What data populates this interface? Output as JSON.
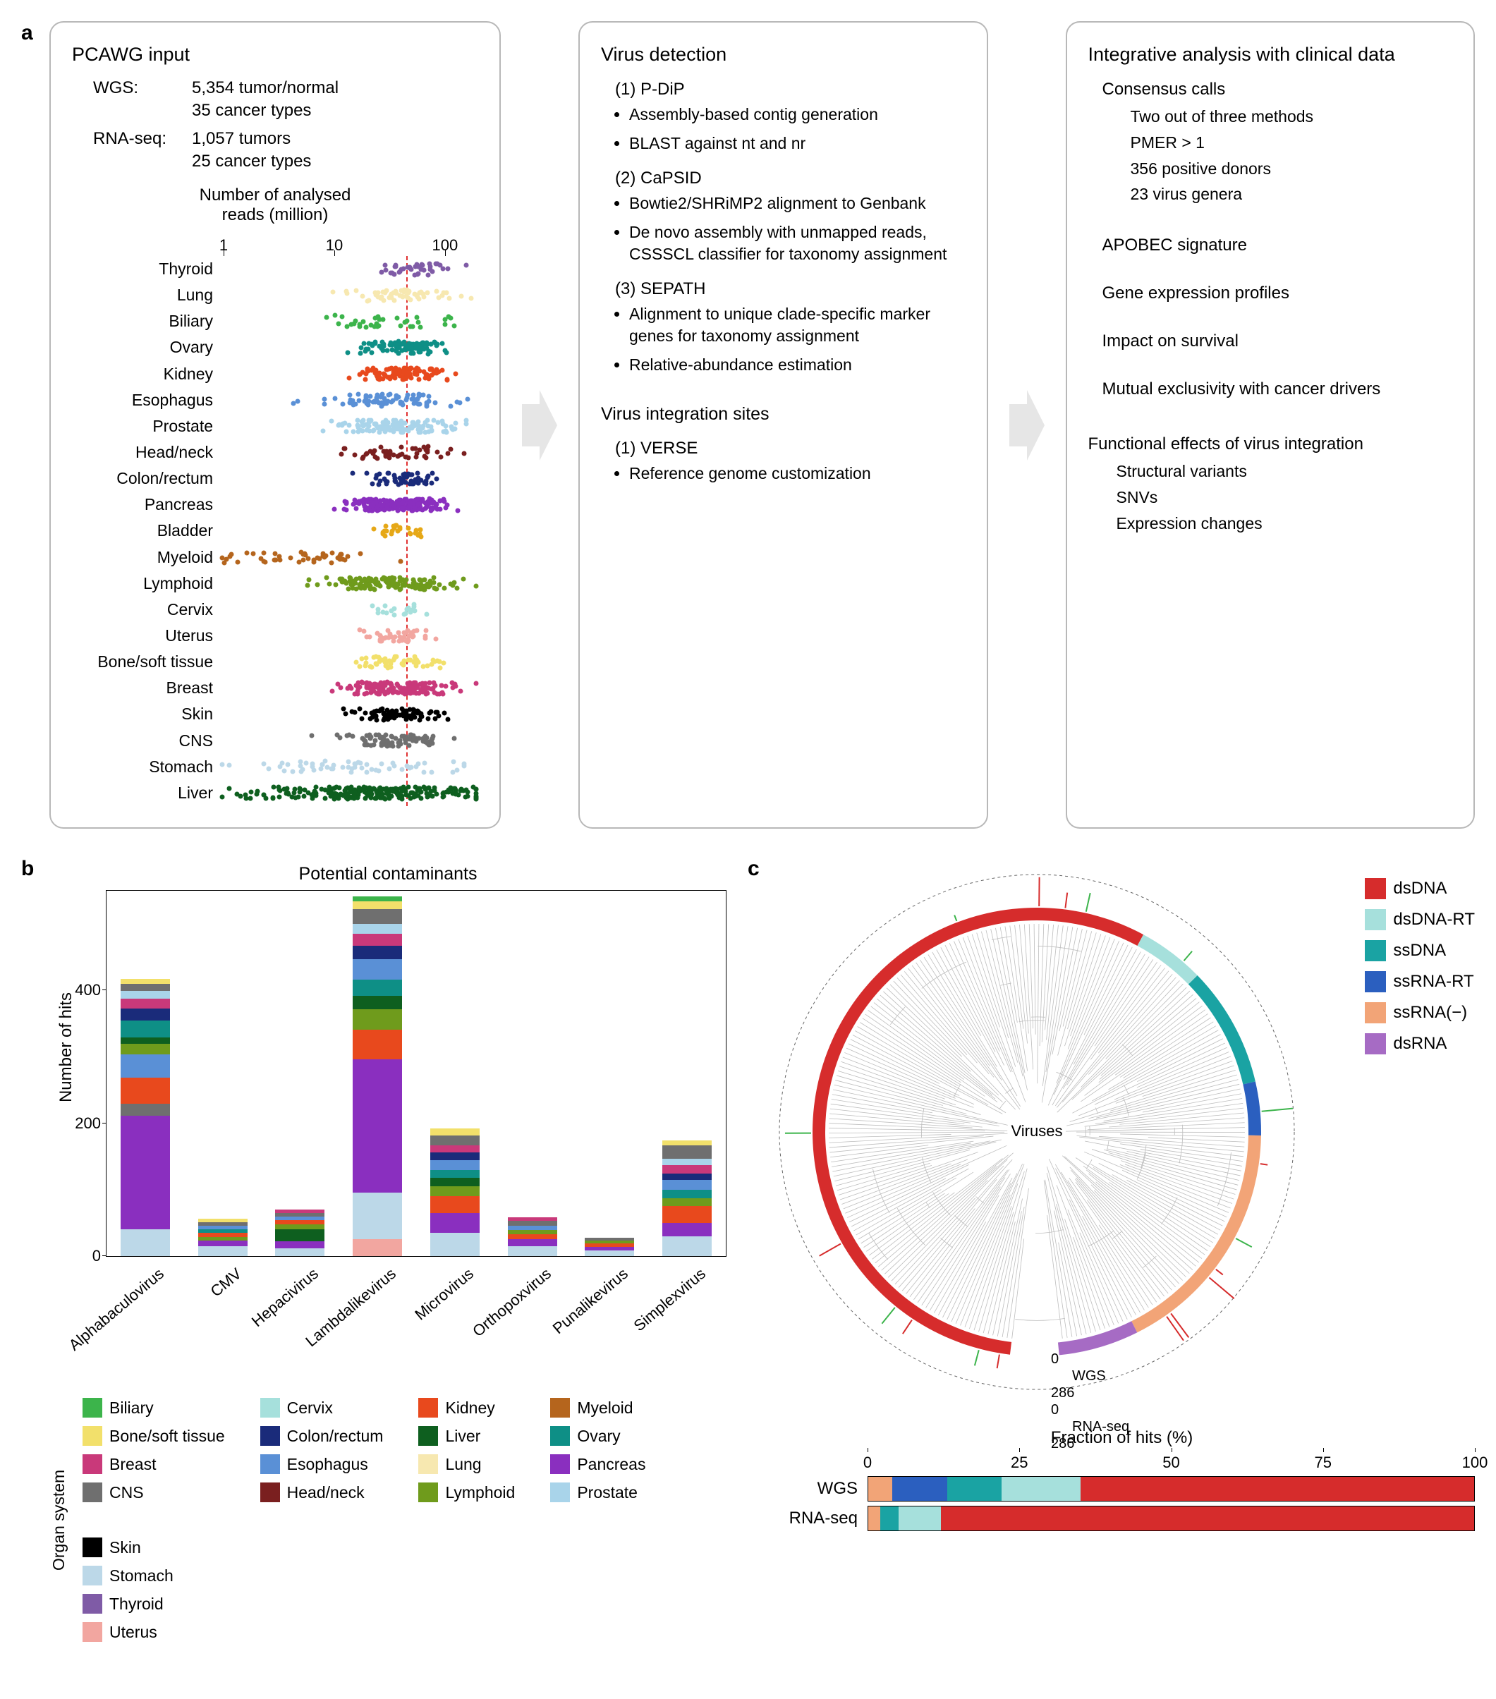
{
  "labels": {
    "a": "a",
    "b": "b",
    "c": "c"
  },
  "panel_a": {
    "box1": {
      "title": "PCAWG input",
      "rows": [
        {
          "k": "WGS:",
          "v": "5,354 tumor/normal"
        },
        {
          "k": "",
          "v": "35 cancer types"
        },
        {
          "k": "RNA-seq:",
          "v": "1,057 tumors"
        },
        {
          "k": "",
          "v": "25 cancer types"
        }
      ],
      "scatter": {
        "title": "Number of analysed",
        "subtitle": "reads (million)",
        "ticks": [
          1,
          10,
          100
        ],
        "xmin_log": 0,
        "xmax_log": 2.3,
        "median_log": 1.65,
        "organs": [
          {
            "name": "Thyroid",
            "color": "#7f5ba6",
            "n": 40,
            "mu": 1.72,
            "sd": 0.18
          },
          {
            "name": "Lung",
            "color": "#f7e8b0",
            "n": 55,
            "mu": 1.6,
            "sd": 0.28
          },
          {
            "name": "Biliary",
            "color": "#3cb44b",
            "n": 35,
            "mu": 1.45,
            "sd": 0.35
          },
          {
            "name": "Ovary",
            "color": "#0e8f86",
            "n": 90,
            "mu": 1.62,
            "sd": 0.2
          },
          {
            "name": "Kidney",
            "color": "#e8491d",
            "n": 100,
            "mu": 1.63,
            "sd": 0.2
          },
          {
            "name": "Esophagus",
            "color": "#5a90d6",
            "n": 80,
            "mu": 1.48,
            "sd": 0.3
          },
          {
            "name": "Prostate",
            "color": "#a9d4ea",
            "n": 120,
            "mu": 1.55,
            "sd": 0.25
          },
          {
            "name": "Head/neck",
            "color": "#7a1f1f",
            "n": 50,
            "mu": 1.58,
            "sd": 0.28
          },
          {
            "name": "Colon/rectum",
            "color": "#1a2b7a",
            "n": 55,
            "mu": 1.6,
            "sd": 0.15
          },
          {
            "name": "Pancreas",
            "color": "#8a2fbf",
            "n": 200,
            "mu": 1.58,
            "sd": 0.22
          },
          {
            "name": "Bladder",
            "color": "#e6a817",
            "n": 25,
            "mu": 1.6,
            "sd": 0.12
          },
          {
            "name": "Myeloid",
            "color": "#b5651d",
            "n": 45,
            "mu": 0.65,
            "sd": 0.35
          },
          {
            "name": "Lymphoid",
            "color": "#6f9b1c",
            "n": 140,
            "mu": 1.5,
            "sd": 0.3
          },
          {
            "name": "Cervix",
            "color": "#a6e0dc",
            "n": 20,
            "mu": 1.62,
            "sd": 0.1
          },
          {
            "name": "Uterus",
            "color": "#f2a6a0",
            "n": 45,
            "mu": 1.58,
            "sd": 0.14
          },
          {
            "name": "Bone/soft tissue",
            "color": "#f2e06b",
            "n": 50,
            "mu": 1.55,
            "sd": 0.25
          },
          {
            "name": "Breast",
            "color": "#c9397a",
            "n": 150,
            "mu": 1.55,
            "sd": 0.25
          },
          {
            "name": "Skin",
            "color": "#000000",
            "n": 90,
            "mu": 1.58,
            "sd": 0.22
          },
          {
            "name": "CNS",
            "color": "#6f6f6f",
            "n": 80,
            "mu": 1.55,
            "sd": 0.25
          },
          {
            "name": "Stomach",
            "color": "#bcd8e8",
            "n": 60,
            "mu": 1.1,
            "sd": 0.45
          },
          {
            "name": "Liver",
            "color": "#0e5f1f",
            "n": 250,
            "mu": 1.3,
            "sd": 0.5
          }
        ]
      }
    },
    "box2": {
      "title": "Virus detection",
      "methods": [
        {
          "head": "(1) P-DiP",
          "items": [
            "Assembly-based contig generation",
            "BLAST against nt and nr"
          ]
        },
        {
          "head": "(2) CaPSID",
          "items": [
            "Bowtie2/SHRiMP2 alignment to Genbank",
            "De novo assembly with unmapped reads, CSSSCL classifier for taxonomy assignment"
          ]
        },
        {
          "head": "(3) SEPATH",
          "items": [
            "Alignment to unique clade-specific marker genes for taxonomy assignment",
            "Relative-abundance estimation"
          ]
        }
      ],
      "integration_head": "Virus integration sites",
      "integration": [
        {
          "head": "(1) VERSE",
          "items": [
            "Reference genome customization"
          ]
        }
      ]
    },
    "box3": {
      "title": "Integrative analysis with clinical data",
      "consensus_head": "Consensus calls",
      "consensus_items": [
        "Two out of three methods",
        "PMER > 1",
        "356 positive donors",
        "23  virus genera"
      ],
      "analyses": [
        "APOBEC signature",
        "Gene expression profiles",
        "Impact on survival",
        "Mutual exclusivity with cancer drivers"
      ],
      "func_head": "Functional effects of virus integration",
      "func_items": [
        "Structural variants",
        "SNVs",
        "Expression changes"
      ]
    }
  },
  "organ_colors": {
    "Biliary": "#3cb44b",
    "Bone/soft tissue": "#f2e06b",
    "Breast": "#c9397a",
    "CNS": "#6f6f6f",
    "Cervix": "#a6e0dc",
    "Colon/rectum": "#1a2b7a",
    "Esophagus": "#5a90d6",
    "Head/neck": "#7a1f1f",
    "Kidney": "#e8491d",
    "Liver": "#0e5f1f",
    "Lung": "#f7e8b0",
    "Lymphoid": "#6f9b1c",
    "Myeloid": "#b5651d",
    "Ovary": "#0e8f86",
    "Pancreas": "#8a2fbf",
    "Prostate": "#a9d4ea",
    "Skin": "#000000",
    "Stomach": "#bcd8e8",
    "Thyroid": "#7f5ba6",
    "Uterus": "#f2a6a0"
  },
  "panel_b": {
    "title": "Potential contaminants",
    "ylabel": "Number of hits",
    "ymax": 550,
    "yticks": [
      0,
      200,
      400
    ],
    "categories": [
      {
        "name": "Alphabaculovirus",
        "segments": [
          {
            "c": "#bcd8e8",
            "v": 40
          },
          {
            "c": "#8a2fbf",
            "v": 170
          },
          {
            "c": "#6f6f6f",
            "v": 18
          },
          {
            "c": "#e8491d",
            "v": 40
          },
          {
            "c": "#5a90d6",
            "v": 35
          },
          {
            "c": "#6f9b1c",
            "v": 15
          },
          {
            "c": "#0e5f1f",
            "v": 10
          },
          {
            "c": "#0e8f86",
            "v": 25
          },
          {
            "c": "#1a2b7a",
            "v": 18
          },
          {
            "c": "#c9397a",
            "v": 15
          },
          {
            "c": "#a9d4ea",
            "v": 12
          },
          {
            "c": "#6f6f6f",
            "v": 10
          },
          {
            "c": "#f2e06b",
            "v": 8
          }
        ]
      },
      {
        "name": "CMV",
        "segments": [
          {
            "c": "#bcd8e8",
            "v": 15
          },
          {
            "c": "#8a2fbf",
            "v": 8
          },
          {
            "c": "#6f9b1c",
            "v": 6
          },
          {
            "c": "#e8491d",
            "v": 6
          },
          {
            "c": "#0e8f86",
            "v": 5
          },
          {
            "c": "#5a90d6",
            "v": 5
          },
          {
            "c": "#6f6f6f",
            "v": 6
          },
          {
            "c": "#f2e06b",
            "v": 5
          }
        ]
      },
      {
        "name": "Hepacivirus",
        "segments": [
          {
            "c": "#bcd8e8",
            "v": 12
          },
          {
            "c": "#8a2fbf",
            "v": 10
          },
          {
            "c": "#0e5f1f",
            "v": 18
          },
          {
            "c": "#6f9b1c",
            "v": 8
          },
          {
            "c": "#e8491d",
            "v": 6
          },
          {
            "c": "#5a90d6",
            "v": 5
          },
          {
            "c": "#6f6f6f",
            "v": 6
          },
          {
            "c": "#c9397a",
            "v": 5
          }
        ]
      },
      {
        "name": "Lambdalikevirus",
        "segments": [
          {
            "c": "#f2a6a0",
            "v": 25
          },
          {
            "c": "#bcd8e8",
            "v": 70
          },
          {
            "c": "#8a2fbf",
            "v": 200
          },
          {
            "c": "#e8491d",
            "v": 45
          },
          {
            "c": "#6f9b1c",
            "v": 30
          },
          {
            "c": "#0e5f1f",
            "v": 20
          },
          {
            "c": "#0e8f86",
            "v": 25
          },
          {
            "c": "#5a90d6",
            "v": 30
          },
          {
            "c": "#1a2b7a",
            "v": 20
          },
          {
            "c": "#c9397a",
            "v": 18
          },
          {
            "c": "#a9d4ea",
            "v": 15
          },
          {
            "c": "#6f6f6f",
            "v": 22
          },
          {
            "c": "#f2e06b",
            "v": 12
          },
          {
            "c": "#3cb44b",
            "v": 8
          }
        ]
      },
      {
        "name": "Microvirus",
        "segments": [
          {
            "c": "#bcd8e8",
            "v": 35
          },
          {
            "c": "#8a2fbf",
            "v": 30
          },
          {
            "c": "#e8491d",
            "v": 25
          },
          {
            "c": "#6f9b1c",
            "v": 15
          },
          {
            "c": "#0e5f1f",
            "v": 12
          },
          {
            "c": "#0e8f86",
            "v": 12
          },
          {
            "c": "#5a90d6",
            "v": 15
          },
          {
            "c": "#1a2b7a",
            "v": 12
          },
          {
            "c": "#c9397a",
            "v": 10
          },
          {
            "c": "#6f6f6f",
            "v": 15
          },
          {
            "c": "#f2e06b",
            "v": 10
          }
        ]
      },
      {
        "name": "Orthopoxvirus",
        "segments": [
          {
            "c": "#bcd8e8",
            "v": 15
          },
          {
            "c": "#8a2fbf",
            "v": 10
          },
          {
            "c": "#e8491d",
            "v": 8
          },
          {
            "c": "#6f9b1c",
            "v": 6
          },
          {
            "c": "#5a90d6",
            "v": 6
          },
          {
            "c": "#6f6f6f",
            "v": 8
          },
          {
            "c": "#c9397a",
            "v": 5
          }
        ]
      },
      {
        "name": "Punalikevirus",
        "segments": [
          {
            "c": "#bcd8e8",
            "v": 8
          },
          {
            "c": "#8a2fbf",
            "v": 6
          },
          {
            "c": "#e8491d",
            "v": 5
          },
          {
            "c": "#6f9b1c",
            "v": 4
          },
          {
            "c": "#6f6f6f",
            "v": 5
          }
        ]
      },
      {
        "name": "Simplexvirus",
        "segments": [
          {
            "c": "#bcd8e8",
            "v": 30
          },
          {
            "c": "#8a2fbf",
            "v": 20
          },
          {
            "c": "#e8491d",
            "v": 25
          },
          {
            "c": "#6f9b1c",
            "v": 12
          },
          {
            "c": "#0e8f86",
            "v": 12
          },
          {
            "c": "#5a90d6",
            "v": 15
          },
          {
            "c": "#1a2b7a",
            "v": 10
          },
          {
            "c": "#c9397a",
            "v": 12
          },
          {
            "c": "#a9d4ea",
            "v": 10
          },
          {
            "c": "#6f6f6f",
            "v": 20
          },
          {
            "c": "#f2e06b",
            "v": 8
          }
        ]
      }
    ]
  },
  "organ_legend": {
    "label": "Organ system",
    "cols": [
      [
        "Biliary",
        "Bone/soft tissue",
        "Breast",
        "CNS"
      ],
      [
        "Cervix",
        "Colon/rectum",
        "Esophagus",
        "Head/neck"
      ],
      [
        "Kidney",
        "Liver",
        "Lung",
        "Lymphoid"
      ],
      [
        "Myeloid",
        "Ovary",
        "Pancreas",
        "Prostate"
      ],
      [
        "Skin",
        "Stomach",
        "Thyroid",
        "Uterus"
      ]
    ]
  },
  "panel_c": {
    "center": "Viruses",
    "groups": [
      {
        "name": "dsDNA",
        "color": "#d62c2c"
      },
      {
        "name": "dsDNA-RT",
        "color": "#a6e0dc"
      },
      {
        "name": "ssDNA",
        "color": "#1aa3a3"
      },
      {
        "name": "ssRNA-RT",
        "color": "#2b5fbf"
      },
      {
        "name": "ssRNA(−)",
        "color": "#f2a477"
      },
      {
        "name": "dsRNA",
        "color": "#a66bc4"
      }
    ],
    "ring_fractions": [
      {
        "color": "#d62c2c",
        "frac": 0.58
      },
      {
        "color": "#a6e0dc",
        "frac": 0.05
      },
      {
        "color": "#1aa3a3",
        "frac": 0.09
      },
      {
        "color": "#2b5fbf",
        "frac": 0.04
      },
      {
        "color": "#f2a477",
        "frac": 0.18
      },
      {
        "color": "#a66bc4",
        "frac": 0.06
      }
    ],
    "scale_labels": {
      "wgs0": "0",
      "wgs": "WGS",
      "wgs_max": "286",
      "rna0": "0",
      "rna": "RNA-seq",
      "rna_max": "286"
    },
    "bars_title": "Fraction of hits (%)",
    "bar_ticks": [
      0,
      25,
      50,
      75,
      100
    ],
    "bars": [
      {
        "label": "WGS",
        "segments": [
          {
            "c": "#f2a477",
            "v": 4
          },
          {
            "c": "#2b5fbf",
            "v": 9
          },
          {
            "c": "#1aa3a3",
            "v": 9
          },
          {
            "c": "#a6e0dc",
            "v": 13
          },
          {
            "c": "#d62c2c",
            "v": 65
          }
        ]
      },
      {
        "label": "RNA-seq",
        "segments": [
          {
            "c": "#f2a477",
            "v": 2
          },
          {
            "c": "#1aa3a3",
            "v": 3
          },
          {
            "c": "#a6e0dc",
            "v": 7
          },
          {
            "c": "#d62c2c",
            "v": 88
          }
        ]
      }
    ]
  }
}
